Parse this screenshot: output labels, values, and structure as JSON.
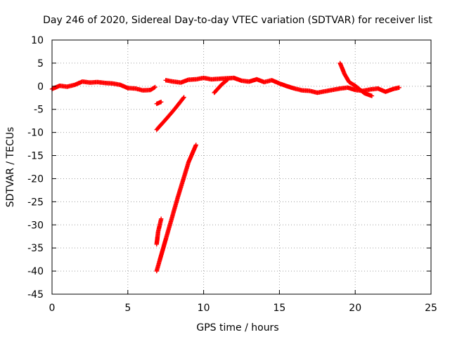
{
  "chart_data": {
    "type": "scatter",
    "title": "Day 246 of 2020, Sidereal Day-to-day VTEC variation (SDTVAR) for receiver list",
    "xlabel": "GPS time / hours",
    "ylabel": "SDTVAR / TECUs",
    "xlim": [
      0,
      25
    ],
    "ylim": [
      -45,
      10
    ],
    "x_ticks": [
      "0",
      "5",
      "10",
      "15",
      "20",
      "25"
    ],
    "y_ticks": [
      "10",
      "5",
      "0",
      "-5",
      "-10",
      "-15",
      "-20",
      "-25",
      "-30",
      "-35",
      "-40",
      "-45"
    ],
    "grid": true,
    "marker": "+",
    "color": "#ff0000",
    "series": [
      {
        "segments": [
          [
            [
              0.0,
              -0.6
            ],
            [
              0.5,
              0.1
            ],
            [
              1.0,
              -0.1
            ],
            [
              1.5,
              0.3
            ],
            [
              2.0,
              1.0
            ],
            [
              2.5,
              0.8
            ],
            [
              3.0,
              0.9
            ],
            [
              3.5,
              0.7
            ],
            [
              4.0,
              0.6
            ],
            [
              4.5,
              0.3
            ],
            [
              5.0,
              -0.4
            ],
            [
              5.5,
              -0.5
            ],
            [
              6.0,
              -0.9
            ],
            [
              6.5,
              -0.8
            ],
            [
              6.8,
              -0.2
            ]
          ],
          [
            [
              6.9,
              -3.8
            ],
            [
              7.2,
              -3.4
            ]
          ],
          [
            [
              7.5,
              1.3
            ],
            [
              8.0,
              1.0
            ],
            [
              8.5,
              0.8
            ],
            [
              9.0,
              1.4
            ],
            [
              9.5,
              1.5
            ],
            [
              10.0,
              1.8
            ],
            [
              10.5,
              1.5
            ],
            [
              11.0,
              1.6
            ],
            [
              11.5,
              1.7
            ],
            [
              12.0,
              1.8
            ],
            [
              12.5,
              1.2
            ],
            [
              13.0,
              1.0
            ],
            [
              13.5,
              1.5
            ],
            [
              14.0,
              0.9
            ],
            [
              14.5,
              1.3
            ],
            [
              15.0,
              0.6
            ],
            [
              15.5,
              0.0
            ],
            [
              16.0,
              -0.5
            ],
            [
              16.5,
              -0.9
            ],
            [
              17.0,
              -1.0
            ],
            [
              17.5,
              -1.4
            ],
            [
              18.0,
              -1.1
            ],
            [
              18.5,
              -0.8
            ],
            [
              19.0,
              -0.5
            ],
            [
              19.5,
              -0.3
            ],
            [
              20.0,
              -0.8
            ],
            [
              20.5,
              -1.0
            ],
            [
              21.0,
              -0.7
            ],
            [
              21.5,
              -0.5
            ],
            [
              22.0,
              -1.2
            ],
            [
              22.5,
              -0.6
            ],
            [
              22.9,
              -0.3
            ]
          ],
          [
            [
              19.0,
              5.0
            ],
            [
              19.3,
              2.6
            ],
            [
              19.6,
              0.9
            ],
            [
              20.0,
              0.1
            ],
            [
              20.6,
              -1.5
            ],
            [
              21.1,
              -2.1
            ]
          ],
          [
            [
              6.9,
              -9.4
            ],
            [
              7.5,
              -7.2
            ],
            [
              8.1,
              -4.9
            ],
            [
              8.7,
              -2.4
            ]
          ],
          [
            [
              10.7,
              -1.4
            ],
            [
              11.2,
              0.4
            ],
            [
              11.6,
              1.5
            ]
          ],
          [
            [
              6.9,
              -34.2
            ],
            [
              7.0,
              -31.5
            ],
            [
              7.2,
              -28.7
            ]
          ],
          [
            [
              6.9,
              -40.0
            ],
            [
              7.6,
              -32.0
            ],
            [
              8.3,
              -24.0
            ],
            [
              9.0,
              -16.5
            ],
            [
              9.5,
              -12.7
            ]
          ]
        ]
      }
    ]
  }
}
